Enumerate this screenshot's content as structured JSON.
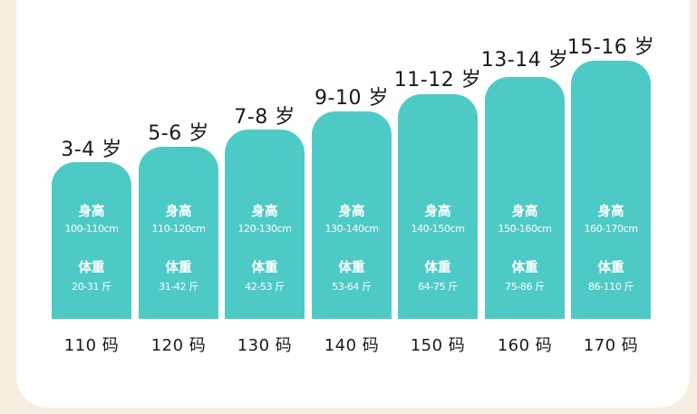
{
  "labels": {
    "height": "身高",
    "weight": "体重"
  },
  "sizes": [
    {
      "age": "3-4 岁",
      "height_range": "100-110cm",
      "weight_range": "20-31 斤",
      "size": "110 码"
    },
    {
      "age": "5-6 岁",
      "height_range": "110-120cm",
      "weight_range": "31-42 斤",
      "size": "120 码"
    },
    {
      "age": "7-8 岁",
      "height_range": "120-130cm",
      "weight_range": "42-53 斤",
      "size": "130 码"
    },
    {
      "age": "9-10 岁",
      "height_range": "130-140cm",
      "weight_range": "53-64 斤",
      "size": "140 码"
    },
    {
      "age": "11-12 岁",
      "height_range": "140-150cm",
      "weight_range": "64-75 斤",
      "size": "150 码"
    },
    {
      "age": "13-14 岁",
      "height_range": "150-160cm",
      "weight_range": "75-86 斤",
      "size": "160 码"
    },
    {
      "age": "15-16 岁",
      "height_range": "160-170cm",
      "weight_range": "86-110 斤",
      "size": "170 码"
    }
  ],
  "colors": {
    "bar": "#4ecac6",
    "background": "#f6ede1",
    "card": "#ffffff",
    "text": "#1a1a1a"
  }
}
